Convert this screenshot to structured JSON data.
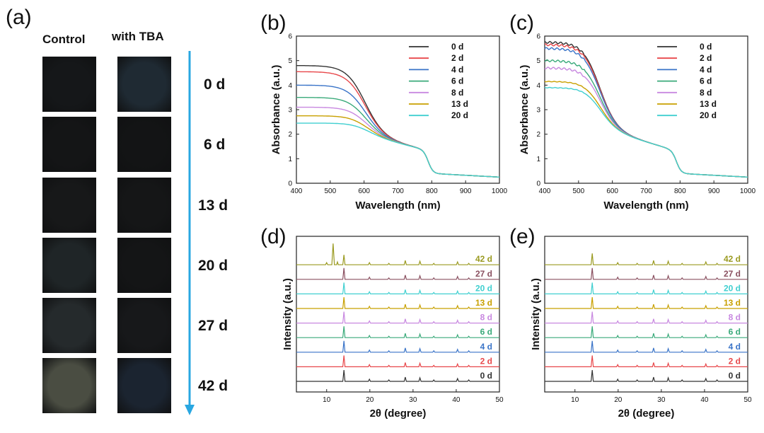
{
  "panel_a": {
    "letter": "(a)",
    "columns": [
      "Control",
      "with TBA"
    ],
    "days": [
      "0 d",
      "6 d",
      "13 d",
      "20 d",
      "27 d",
      "42 d"
    ],
    "control_colors": [
      "#151719",
      "#141516",
      "#171819",
      "#1f2527",
      "#252a2c",
      "#4a4d42"
    ],
    "tba_colors": [
      "#1f2a33",
      "#131415",
      "#151617",
      "#141516",
      "#17181a",
      "#1b2430"
    ],
    "arrow_color": "#29a7e1"
  },
  "chart_data": [
    {
      "panel": "(b)",
      "type": "line",
      "xlabel": "Wavelength (nm)",
      "ylabel": "Absorbance (a.u.)",
      "xlim": [
        400,
        1000
      ],
      "ylim": [
        0,
        6
      ],
      "xticks": [
        400,
        500,
        600,
        700,
        800,
        900,
        1000
      ],
      "yticks": [
        0,
        1,
        2,
        3,
        4,
        5,
        6
      ],
      "legend": "top-right",
      "series": [
        {
          "name": "0 d",
          "color": "#333333",
          "plateau": 4.8
        },
        {
          "name": "2 d",
          "color": "#e8474a",
          "plateau": 4.55
        },
        {
          "name": "4 d",
          "color": "#3a74c8",
          "plateau": 4.0
        },
        {
          "name": "6 d",
          "color": "#3aaa7a",
          "plateau": 3.5
        },
        {
          "name": "8 d",
          "color": "#c888e0",
          "plateau": 3.1
        },
        {
          "name": "13 d",
          "color": "#c8a000",
          "plateau": 2.75
        },
        {
          "name": "20 d",
          "color": "#40cfd0",
          "plateau": 2.45
        }
      ]
    },
    {
      "panel": "(c)",
      "type": "line",
      "xlabel": "Wavelength (nm)",
      "ylabel": "Absorbance (a.u.)",
      "xlim": [
        400,
        1000
      ],
      "ylim": [
        0,
        6
      ],
      "xticks": [
        400,
        500,
        600,
        700,
        800,
        900,
        1000
      ],
      "yticks": [
        0,
        1,
        2,
        3,
        4,
        5,
        6
      ],
      "legend": "top-right",
      "series": [
        {
          "name": "0 d",
          "color": "#333333",
          "plateau": 5.75
        },
        {
          "name": "2 d",
          "color": "#e8474a",
          "plateau": 5.65
        },
        {
          "name": "4 d",
          "color": "#3a74c8",
          "plateau": 5.5
        },
        {
          "name": "6 d",
          "color": "#3aaa7a",
          "plateau": 5.0
        },
        {
          "name": "8 d",
          "color": "#c888e0",
          "plateau": 4.7
        },
        {
          "name": "13 d",
          "color": "#c8a000",
          "plateau": 4.15
        },
        {
          "name": "20 d",
          "color": "#40cfd0",
          "plateau": 3.9
        }
      ]
    },
    {
      "panel": "(d)",
      "type": "line",
      "xlabel": "2θ (degree)",
      "ylabel": "Intensity (a.u.)",
      "xlim": [
        3,
        50
      ],
      "xticks": [
        10,
        20,
        30,
        40,
        50
      ],
      "peaks": [
        14.0,
        19.9,
        24.4,
        28.2,
        31.6,
        34.8,
        40.3,
        42.9
      ],
      "extra_peaks_42d": [
        10.0,
        11.5,
        12.5
      ],
      "series": [
        {
          "name": "0 d",
          "color": "#333333"
        },
        {
          "name": "2 d",
          "color": "#e8474a"
        },
        {
          "name": "4 d",
          "color": "#3a74c8"
        },
        {
          "name": "6 d",
          "color": "#3aaa7a"
        },
        {
          "name": "8 d",
          "color": "#c888e0"
        },
        {
          "name": "13 d",
          "color": "#c8a000"
        },
        {
          "name": "20 d",
          "color": "#40cfd0"
        },
        {
          "name": "27 d",
          "color": "#8a5060"
        },
        {
          "name": "42 d",
          "color": "#9a9a20"
        }
      ]
    },
    {
      "panel": "(e)",
      "type": "line",
      "xlabel": "2θ (degree)",
      "ylabel": "Intensity (a.u.)",
      "xlim": [
        3,
        50
      ],
      "xticks": [
        10,
        20,
        30,
        40,
        50
      ],
      "peaks": [
        14.0,
        19.9,
        24.4,
        28.2,
        31.6,
        34.8,
        40.3,
        42.9
      ],
      "series": [
        {
          "name": "0 d",
          "color": "#333333"
        },
        {
          "name": "2 d",
          "color": "#e8474a"
        },
        {
          "name": "4 d",
          "color": "#3a74c8"
        },
        {
          "name": "6 d",
          "color": "#3aaa7a"
        },
        {
          "name": "8 d",
          "color": "#c888e0"
        },
        {
          "name": "13 d",
          "color": "#c8a000"
        },
        {
          "name": "20 d",
          "color": "#40cfd0"
        },
        {
          "name": "27 d",
          "color": "#8a5060"
        },
        {
          "name": "42 d",
          "color": "#9a9a20"
        }
      ]
    }
  ]
}
